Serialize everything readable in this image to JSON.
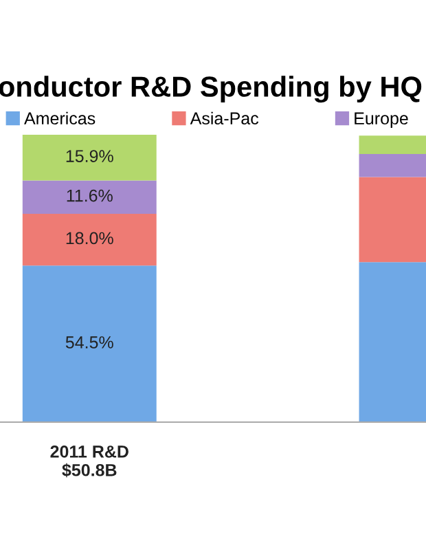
{
  "chart_data": {
    "type": "bar",
    "stacked": true,
    "title": "onductor R&D Spending by HQ",
    "categories": [
      "2011 R&D\n$50.8B",
      null
    ],
    "series": [
      {
        "name": "Americas",
        "color": "#6fa8e6",
        "values": [
          54.5,
          55.7
        ],
        "value_labels": [
          "54.5%",
          null
        ]
      },
      {
        "name": "Asia-Pac",
        "color": "#ee7b74",
        "values": [
          18.0,
          29.6
        ],
        "value_labels": [
          "18.0%",
          null
        ]
      },
      {
        "name": "Europe",
        "color": "#a68bcf",
        "values": [
          11.6,
          8.0
        ],
        "value_labels": [
          "11.6%",
          null
        ]
      },
      {
        "color": "#b3d86c",
        "values": [
          15.9,
          6.4
        ],
        "value_labels": [
          "15.9%",
          null
        ]
      }
    ],
    "legend": "top left",
    "grid": false
  }
}
